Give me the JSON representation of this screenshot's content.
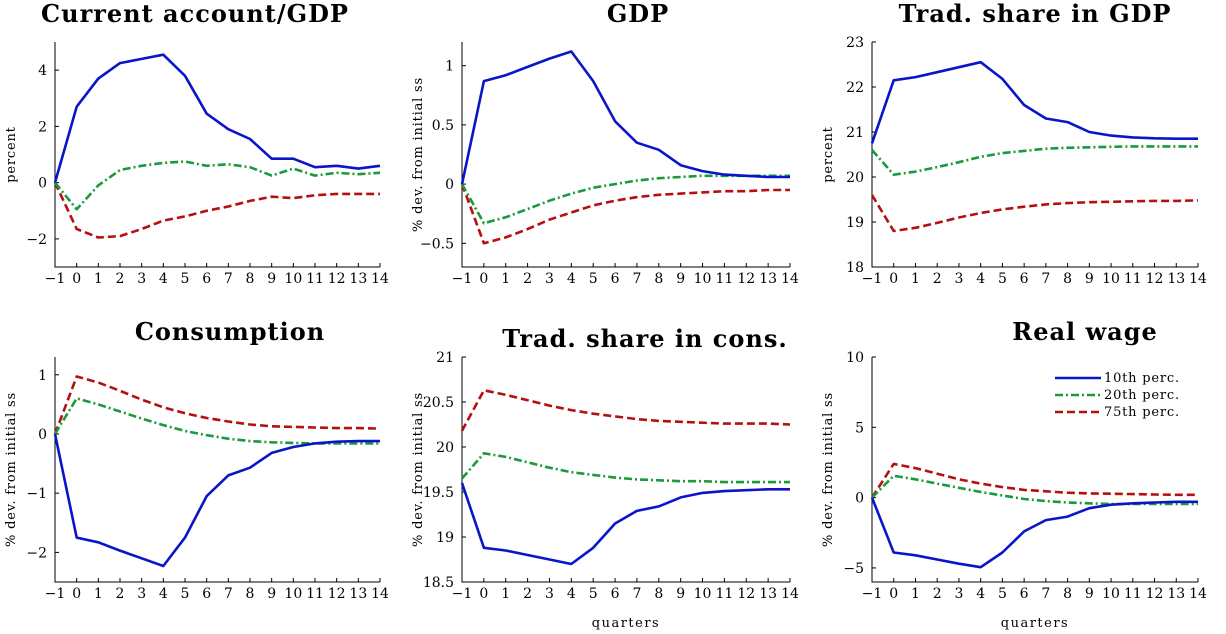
{
  "chart_data": [
    {
      "type": "line",
      "title": "Current account/GDP",
      "ylabel": "percent",
      "xlabel": "",
      "x": [
        -1,
        0,
        1,
        2,
        3,
        4,
        5,
        6,
        7,
        8,
        9,
        10,
        11,
        12,
        13,
        14
      ],
      "xticks": [
        "−1",
        "0",
        "1",
        "2",
        "3",
        "4",
        "5",
        "6",
        "7",
        "8",
        "9",
        "10",
        "11",
        "12",
        "13",
        "14"
      ],
      "ylim": [
        -3,
        5
      ],
      "yticks": [
        -2,
        0,
        2,
        4
      ],
      "ytick_labels": [
        "−2",
        "0",
        "2",
        "4"
      ],
      "series": [
        {
          "key": "p10",
          "values": [
            0,
            2.7,
            3.7,
            4.25,
            4.4,
            4.55,
            3.8,
            2.45,
            1.9,
            1.55,
            0.85,
            0.85,
            0.55,
            0.6,
            0.5,
            0.6
          ]
        },
        {
          "key": "p20",
          "values": [
            0,
            -0.95,
            -0.1,
            0.45,
            0.6,
            0.7,
            0.75,
            0.6,
            0.65,
            0.55,
            0.25,
            0.5,
            0.25,
            0.35,
            0.3,
            0.35
          ]
        },
        {
          "key": "p75",
          "values": [
            0,
            -1.65,
            -1.95,
            -1.9,
            -1.65,
            -1.35,
            -1.2,
            -1.0,
            -0.85,
            -0.65,
            -0.5,
            -0.55,
            -0.45,
            -0.4,
            -0.4,
            -0.4
          ]
        }
      ]
    },
    {
      "type": "line",
      "title": "GDP",
      "ylabel": "% dev. from initial ss",
      "xlabel": "",
      "x": [
        -1,
        0,
        1,
        2,
        3,
        4,
        5,
        6,
        7,
        8,
        9,
        10,
        11,
        12,
        13,
        14
      ],
      "xticks": [
        "−1",
        "0",
        "1",
        "2",
        "3",
        "4",
        "5",
        "6",
        "7",
        "8",
        "9",
        "10",
        "11",
        "12",
        "13",
        "14"
      ],
      "ylim": [
        -0.7,
        1.2
      ],
      "yticks": [
        -0.5,
        0,
        0.5,
        1
      ],
      "ytick_labels": [
        "−0.5",
        "0",
        "0.5",
        "1"
      ],
      "series": [
        {
          "key": "p10",
          "values": [
            0,
            0.87,
            0.92,
            0.99,
            1.06,
            1.12,
            0.87,
            0.53,
            0.35,
            0.29,
            0.16,
            0.11,
            0.08,
            0.07,
            0.06,
            0.06
          ]
        },
        {
          "key": "p20",
          "values": [
            0,
            -0.33,
            -0.28,
            -0.21,
            -0.14,
            -0.08,
            -0.03,
            0.0,
            0.03,
            0.05,
            0.06,
            0.07,
            0.07,
            0.07,
            0.07,
            0.07
          ]
        },
        {
          "key": "p75",
          "values": [
            0,
            -0.5,
            -0.45,
            -0.38,
            -0.3,
            -0.24,
            -0.18,
            -0.14,
            -0.11,
            -0.09,
            -0.08,
            -0.07,
            -0.06,
            -0.06,
            -0.05,
            -0.05
          ]
        }
      ]
    },
    {
      "type": "line",
      "title": "Trad. share in GDP",
      "ylabel": "percent",
      "xlabel": "",
      "x": [
        -1,
        0,
        1,
        2,
        3,
        4,
        5,
        6,
        7,
        8,
        9,
        10,
        11,
        12,
        13,
        14
      ],
      "xticks": [
        "−1",
        "0",
        "1",
        "2",
        "3",
        "4",
        "5",
        "6",
        "7",
        "8",
        "9",
        "10",
        "11",
        "12",
        "13",
        "14"
      ],
      "ylim": [
        18,
        23
      ],
      "yticks": [
        18,
        19,
        20,
        21,
        22,
        23
      ],
      "ytick_labels": [
        "18",
        "19",
        "20",
        "21",
        "22",
        "23"
      ],
      "series": [
        {
          "key": "p10",
          "values": [
            20.75,
            22.15,
            22.22,
            22.33,
            22.44,
            22.55,
            22.18,
            21.6,
            21.3,
            21.22,
            21.0,
            20.92,
            20.88,
            20.86,
            20.85,
            20.85
          ]
        },
        {
          "key": "p20",
          "values": [
            20.6,
            20.05,
            20.12,
            20.22,
            20.33,
            20.45,
            20.53,
            20.58,
            20.63,
            20.65,
            20.66,
            20.67,
            20.68,
            20.68,
            20.68,
            20.68
          ]
        },
        {
          "key": "p75",
          "values": [
            19.6,
            18.8,
            18.87,
            18.98,
            19.1,
            19.2,
            19.28,
            19.34,
            19.39,
            19.42,
            19.44,
            19.45,
            19.46,
            19.47,
            19.47,
            19.48
          ]
        }
      ]
    },
    {
      "type": "line",
      "title": "Consumption",
      "ylabel": "% dev. from initial ss",
      "xlabel": "",
      "x": [
        -1,
        0,
        1,
        2,
        3,
        4,
        5,
        6,
        7,
        8,
        9,
        10,
        11,
        12,
        13,
        14
      ],
      "xticks": [
        "−1",
        "0",
        "1",
        "2",
        "3",
        "4",
        "5",
        "6",
        "7",
        "8",
        "9",
        "10",
        "11",
        "12",
        "13",
        "14"
      ],
      "ylim": [
        -2.5,
        1.3
      ],
      "yticks": [
        -2,
        -1,
        0,
        1
      ],
      "ytick_labels": [
        "−2",
        "−1",
        "0",
        "1"
      ],
      "series": [
        {
          "key": "p10",
          "values": [
            0,
            -1.75,
            -1.83,
            -1.97,
            -2.1,
            -2.23,
            -1.75,
            -1.05,
            -0.7,
            -0.57,
            -0.32,
            -0.22,
            -0.16,
            -0.13,
            -0.12,
            -0.12
          ]
        },
        {
          "key": "p20",
          "values": [
            0,
            0.6,
            0.5,
            0.38,
            0.26,
            0.15,
            0.05,
            -0.02,
            -0.08,
            -0.12,
            -0.14,
            -0.15,
            -0.16,
            -0.16,
            -0.16,
            -0.16
          ]
        },
        {
          "key": "p75",
          "values": [
            0,
            0.97,
            0.87,
            0.73,
            0.58,
            0.45,
            0.35,
            0.27,
            0.21,
            0.16,
            0.13,
            0.12,
            0.11,
            0.1,
            0.1,
            0.09
          ]
        }
      ]
    },
    {
      "type": "line",
      "title": "Trad. share in cons.",
      "ylabel": "% dev. from initial ss",
      "xlabel": "quarters",
      "x": [
        -1,
        0,
        1,
        2,
        3,
        4,
        5,
        6,
        7,
        8,
        9,
        10,
        11,
        12,
        13,
        14
      ],
      "xticks": [
        "−1",
        "0",
        "1",
        "2",
        "3",
        "4",
        "5",
        "6",
        "7",
        "8",
        "9",
        "10",
        "11",
        "12",
        "13",
        "14"
      ],
      "ylim": [
        18.5,
        21
      ],
      "yticks": [
        18.5,
        19,
        19.5,
        20,
        20.5,
        21
      ],
      "ytick_labels": [
        "18.5",
        "19",
        "19.5",
        "20",
        "20.5",
        "21"
      ],
      "series": [
        {
          "key": "p10",
          "values": [
            19.6,
            18.88,
            18.85,
            18.8,
            18.75,
            18.7,
            18.88,
            19.15,
            19.29,
            19.34,
            19.44,
            19.49,
            19.51,
            19.52,
            19.53,
            19.53
          ]
        },
        {
          "key": "p20",
          "values": [
            19.65,
            19.93,
            19.89,
            19.83,
            19.77,
            19.72,
            19.69,
            19.66,
            19.64,
            19.63,
            19.62,
            19.62,
            19.61,
            19.61,
            19.61,
            19.61
          ]
        },
        {
          "key": "p75",
          "values": [
            20.18,
            20.63,
            20.58,
            20.52,
            20.46,
            20.41,
            20.37,
            20.34,
            20.31,
            20.29,
            20.28,
            20.27,
            20.26,
            20.26,
            20.26,
            20.25
          ]
        }
      ]
    },
    {
      "type": "line",
      "title": "Real wage",
      "ylabel": "% dev. from initial ss",
      "xlabel": "quarters",
      "x": [
        -1,
        0,
        1,
        2,
        3,
        4,
        5,
        6,
        7,
        8,
        9,
        10,
        11,
        12,
        13,
        14
      ],
      "xticks": [
        "−1",
        "0",
        "1",
        "2",
        "3",
        "4",
        "5",
        "6",
        "7",
        "8",
        "9",
        "10",
        "11",
        "12",
        "13",
        "14"
      ],
      "ylim": [
        -6,
        10
      ],
      "yticks": [
        -5,
        0,
        5,
        10
      ],
      "ytick_labels": [
        "−5",
        "0",
        "5",
        "10"
      ],
      "legend_position": "top-right",
      "series": [
        {
          "key": "p10",
          "values": [
            0,
            -3.9,
            -4.1,
            -4.4,
            -4.7,
            -4.95,
            -3.9,
            -2.4,
            -1.6,
            -1.35,
            -0.75,
            -0.5,
            -0.4,
            -0.35,
            -0.3,
            -0.3
          ]
        },
        {
          "key": "p20",
          "values": [
            0,
            1.55,
            1.3,
            1.0,
            0.7,
            0.4,
            0.15,
            -0.1,
            -0.25,
            -0.35,
            -0.4,
            -0.45,
            -0.45,
            -0.45,
            -0.45,
            -0.45
          ]
        },
        {
          "key": "p75",
          "values": [
            0,
            2.4,
            2.1,
            1.7,
            1.3,
            1.0,
            0.75,
            0.55,
            0.45,
            0.35,
            0.3,
            0.28,
            0.25,
            0.22,
            0.2,
            0.2
          ]
        }
      ]
    }
  ],
  "legend": {
    "p10": "10th perc.",
    "p20": "20th perc.",
    "p75": "75th perc."
  },
  "colors": {
    "p10": "#0a14c8",
    "p20": "#1a9a3a",
    "p75": "#b41010"
  }
}
